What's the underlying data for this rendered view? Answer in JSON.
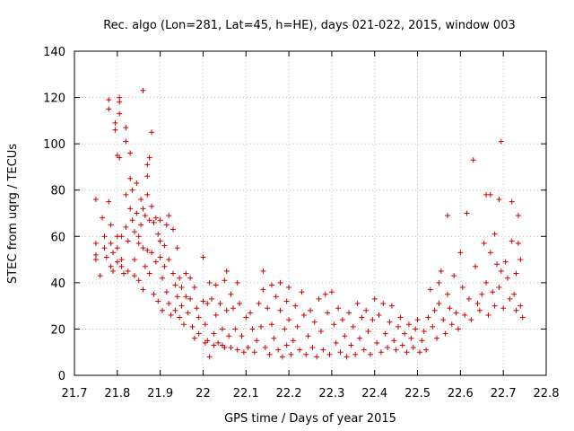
{
  "chart_data": {
    "type": "scatter",
    "title": "Rec. algo (Lon=281, Lat=45, h=HE), days 021-022, 2015, window 003",
    "xlabel": "GPS time / Days of year 2015",
    "ylabel": "STEC from uqrg / TECUs",
    "xlim": [
      21.7,
      22.8
    ],
    "ylim": [
      0,
      140
    ],
    "xticks": [
      "21.7",
      "21.8",
      "21.9",
      "22",
      "22.1",
      "22.2",
      "22.3",
      "22.4",
      "22.5",
      "22.6",
      "22.7",
      "22.8"
    ],
    "yticks": [
      "0",
      "20",
      "40",
      "60",
      "80",
      "100",
      "120",
      "140"
    ],
    "grid": true,
    "marker": "+",
    "color": "#cc0000",
    "points": [
      [
        21.75,
        76
      ],
      [
        21.75,
        57
      ],
      [
        21.75,
        52
      ],
      [
        21.75,
        50
      ],
      [
        21.76,
        43
      ],
      [
        21.765,
        68
      ],
      [
        21.77,
        60
      ],
      [
        21.77,
        55
      ],
      [
        21.775,
        51
      ],
      [
        21.78,
        119
      ],
      [
        21.78,
        115
      ],
      [
        21.78,
        75
      ],
      [
        21.785,
        65
      ],
      [
        21.785,
        57
      ],
      [
        21.785,
        47
      ],
      [
        21.79,
        53
      ],
      [
        21.79,
        45
      ],
      [
        21.795,
        109
      ],
      [
        21.795,
        106
      ],
      [
        21.8,
        95
      ],
      [
        21.8,
        60
      ],
      [
        21.8,
        55
      ],
      [
        21.8,
        49
      ],
      [
        21.805,
        120
      ],
      [
        21.805,
        118
      ],
      [
        21.805,
        113
      ],
      [
        21.805,
        94
      ],
      [
        21.81,
        60
      ],
      [
        21.81,
        50
      ],
      [
        21.81,
        47
      ],
      [
        21.815,
        44
      ],
      [
        21.82,
        107
      ],
      [
        21.82,
        101
      ],
      [
        21.82,
        78
      ],
      [
        21.82,
        64
      ],
      [
        21.825,
        58
      ],
      [
        21.825,
        45
      ],
      [
        21.83,
        96
      ],
      [
        21.83,
        85
      ],
      [
        21.83,
        72
      ],
      [
        21.835,
        80
      ],
      [
        21.835,
        67
      ],
      [
        21.84,
        62
      ],
      [
        21.84,
        50
      ],
      [
        21.84,
        43
      ],
      [
        21.845,
        83
      ],
      [
        21.845,
        70
      ],
      [
        21.85,
        60
      ],
      [
        21.85,
        57
      ],
      [
        21.85,
        41
      ],
      [
        21.855,
        76
      ],
      [
        21.855,
        65
      ],
      [
        21.86,
        123
      ],
      [
        21.86,
        72
      ],
      [
        21.86,
        55
      ],
      [
        21.86,
        37
      ],
      [
        21.865,
        69
      ],
      [
        21.865,
        47
      ],
      [
        21.87,
        91
      ],
      [
        21.87,
        86
      ],
      [
        21.87,
        78
      ],
      [
        21.87,
        54
      ],
      [
        21.875,
        94
      ],
      [
        21.875,
        67
      ],
      [
        21.875,
        44
      ],
      [
        21.88,
        105
      ],
      [
        21.88,
        73
      ],
      [
        21.88,
        53
      ],
      [
        21.885,
        66
      ],
      [
        21.885,
        35
      ],
      [
        21.89,
        68
      ],
      [
        21.89,
        49
      ],
      [
        21.895,
        61
      ],
      [
        21.895,
        32
      ],
      [
        21.9,
        67
      ],
      [
        21.9,
        58
      ],
      [
        21.9,
        51
      ],
      [
        21.905,
        42
      ],
      [
        21.905,
        28
      ],
      [
        21.91,
        56
      ],
      [
        21.91,
        47
      ],
      [
        21.915,
        65
      ],
      [
        21.915,
        36
      ],
      [
        21.92,
        69
      ],
      [
        21.92,
        50
      ],
      [
        21.92,
        31
      ],
      [
        21.925,
        26
      ],
      [
        21.93,
        63
      ],
      [
        21.93,
        44
      ],
      [
        21.935,
        39
      ],
      [
        21.935,
        28
      ],
      [
        21.94,
        55
      ],
      [
        21.94,
        34
      ],
      [
        21.945,
        42
      ],
      [
        21.945,
        25
      ],
      [
        21.95,
        38
      ],
      [
        21.95,
        30
      ],
      [
        21.955,
        22
      ],
      [
        21.96,
        44
      ],
      [
        21.96,
        34
      ],
      [
        21.965,
        27
      ],
      [
        21.97,
        42
      ],
      [
        21.97,
        33
      ],
      [
        21.975,
        21
      ],
      [
        21.98,
        38
      ],
      [
        21.98,
        16
      ],
      [
        21.985,
        29
      ],
      [
        21.99,
        25
      ],
      [
        21.99,
        18
      ],
      [
        22.0,
        51
      ],
      [
        22.0,
        32
      ],
      [
        22.005,
        22
      ],
      [
        22.005,
        14
      ],
      [
        22.01,
        31
      ],
      [
        22.01,
        15
      ],
      [
        22.015,
        40
      ],
      [
        22.015,
        8
      ],
      [
        22.02,
        33
      ],
      [
        22.025,
        18
      ],
      [
        22.025,
        13
      ],
      [
        22.03,
        39
      ],
      [
        22.03,
        26
      ],
      [
        22.035,
        14
      ],
      [
        22.04,
        31
      ],
      [
        22.045,
        20
      ],
      [
        22.045,
        13
      ],
      [
        22.05,
        41
      ],
      [
        22.05,
        12
      ],
      [
        22.055,
        45
      ],
      [
        22.055,
        28
      ],
      [
        22.06,
        17
      ],
      [
        22.065,
        35
      ],
      [
        22.065,
        12
      ],
      [
        22.07,
        29
      ],
      [
        22.075,
        20
      ],
      [
        22.08,
        40
      ],
      [
        22.08,
        11
      ],
      [
        22.085,
        31
      ],
      [
        22.09,
        17
      ],
      [
        22.095,
        10
      ],
      [
        22.1,
        25
      ],
      [
        22.105,
        12
      ],
      [
        22.11,
        27
      ],
      [
        22.115,
        20
      ],
      [
        22.12,
        10
      ],
      [
        22.125,
        15
      ],
      [
        22.13,
        31
      ],
      [
        22.135,
        21
      ],
      [
        22.14,
        45
      ],
      [
        22.14,
        37
      ],
      [
        22.145,
        12
      ],
      [
        22.15,
        29
      ],
      [
        22.155,
        9
      ],
      [
        22.16,
        39
      ],
      [
        22.16,
        22
      ],
      [
        22.165,
        16
      ],
      [
        22.17,
        34
      ],
      [
        22.175,
        11
      ],
      [
        22.18,
        40
      ],
      [
        22.18,
        28
      ],
      [
        22.185,
        8
      ],
      [
        22.19,
        20
      ],
      [
        22.195,
        32
      ],
      [
        22.195,
        13
      ],
      [
        22.2,
        38
      ],
      [
        22.2,
        24
      ],
      [
        22.205,
        9
      ],
      [
        22.21,
        15
      ],
      [
        22.215,
        30
      ],
      [
        22.22,
        21
      ],
      [
        22.225,
        11
      ],
      [
        22.23,
        36
      ],
      [
        22.235,
        26
      ],
      [
        22.24,
        9
      ],
      [
        22.245,
        17
      ],
      [
        22.25,
        28
      ],
      [
        22.255,
        12
      ],
      [
        22.26,
        23
      ],
      [
        22.265,
        8
      ],
      [
        22.27,
        33
      ],
      [
        22.275,
        19
      ],
      [
        22.28,
        11
      ],
      [
        22.285,
        35
      ],
      [
        22.29,
        27
      ],
      [
        22.295,
        9
      ],
      [
        22.3,
        36
      ],
      [
        22.305,
        22
      ],
      [
        22.31,
        14
      ],
      [
        22.315,
        29
      ],
      [
        22.32,
        10
      ],
      [
        22.325,
        24
      ],
      [
        22.33,
        17
      ],
      [
        22.335,
        8
      ],
      [
        22.34,
        27
      ],
      [
        22.345,
        13
      ],
      [
        22.35,
        21
      ],
      [
        22.355,
        9
      ],
      [
        22.36,
        31
      ],
      [
        22.365,
        16
      ],
      [
        22.37,
        25
      ],
      [
        22.375,
        11
      ],
      [
        22.38,
        28
      ],
      [
        22.385,
        19
      ],
      [
        22.39,
        9
      ],
      [
        22.395,
        24
      ],
      [
        22.4,
        33
      ],
      [
        22.405,
        14
      ],
      [
        22.41,
        26
      ],
      [
        22.415,
        10
      ],
      [
        22.42,
        31
      ],
      [
        22.425,
        18
      ],
      [
        22.43,
        12
      ],
      [
        22.435,
        23
      ],
      [
        22.44,
        30
      ],
      [
        22.445,
        15
      ],
      [
        22.45,
        11
      ],
      [
        22.455,
        21
      ],
      [
        22.46,
        25
      ],
      [
        22.465,
        13
      ],
      [
        22.47,
        18
      ],
      [
        22.475,
        10
      ],
      [
        22.48,
        22
      ],
      [
        22.485,
        16
      ],
      [
        22.49,
        12
      ],
      [
        22.495,
        20
      ],
      [
        22.5,
        24
      ],
      [
        22.505,
        10
      ],
      [
        22.51,
        15
      ],
      [
        22.515,
        19
      ],
      [
        22.52,
        11
      ],
      [
        22.525,
        25
      ],
      [
        22.53,
        37
      ],
      [
        22.535,
        21
      ],
      [
        22.54,
        28
      ],
      [
        22.545,
        16
      ],
      [
        22.55,
        40
      ],
      [
        22.55,
        31
      ],
      [
        22.555,
        45
      ],
      [
        22.56,
        24
      ],
      [
        22.565,
        18
      ],
      [
        22.57,
        69
      ],
      [
        22.57,
        35
      ],
      [
        22.575,
        29
      ],
      [
        22.58,
        22
      ],
      [
        22.585,
        43
      ],
      [
        22.59,
        27
      ],
      [
        22.595,
        20
      ],
      [
        22.6,
        53
      ],
      [
        22.605,
        38
      ],
      [
        22.61,
        26
      ],
      [
        22.615,
        70
      ],
      [
        22.62,
        33
      ],
      [
        22.625,
        24
      ],
      [
        22.63,
        93
      ],
      [
        22.635,
        47
      ],
      [
        22.64,
        31
      ],
      [
        22.645,
        28
      ],
      [
        22.65,
        35
      ],
      [
        22.655,
        57
      ],
      [
        22.66,
        78
      ],
      [
        22.66,
        40
      ],
      [
        22.665,
        26
      ],
      [
        22.67,
        78
      ],
      [
        22.67,
        53
      ],
      [
        22.675,
        36
      ],
      [
        22.68,
        61
      ],
      [
        22.68,
        30
      ],
      [
        22.685,
        48
      ],
      [
        22.69,
        76
      ],
      [
        22.69,
        38
      ],
      [
        22.695,
        101
      ],
      [
        22.695,
        45
      ],
      [
        22.7,
        29
      ],
      [
        22.705,
        49
      ],
      [
        22.71,
        42
      ],
      [
        22.715,
        33
      ],
      [
        22.72,
        75
      ],
      [
        22.72,
        58
      ],
      [
        22.725,
        35
      ],
      [
        22.73,
        44
      ],
      [
        22.73,
        28
      ],
      [
        22.735,
        69
      ],
      [
        22.735,
        57
      ],
      [
        22.74,
        50
      ],
      [
        22.74,
        30
      ],
      [
        22.745,
        25
      ]
    ]
  }
}
